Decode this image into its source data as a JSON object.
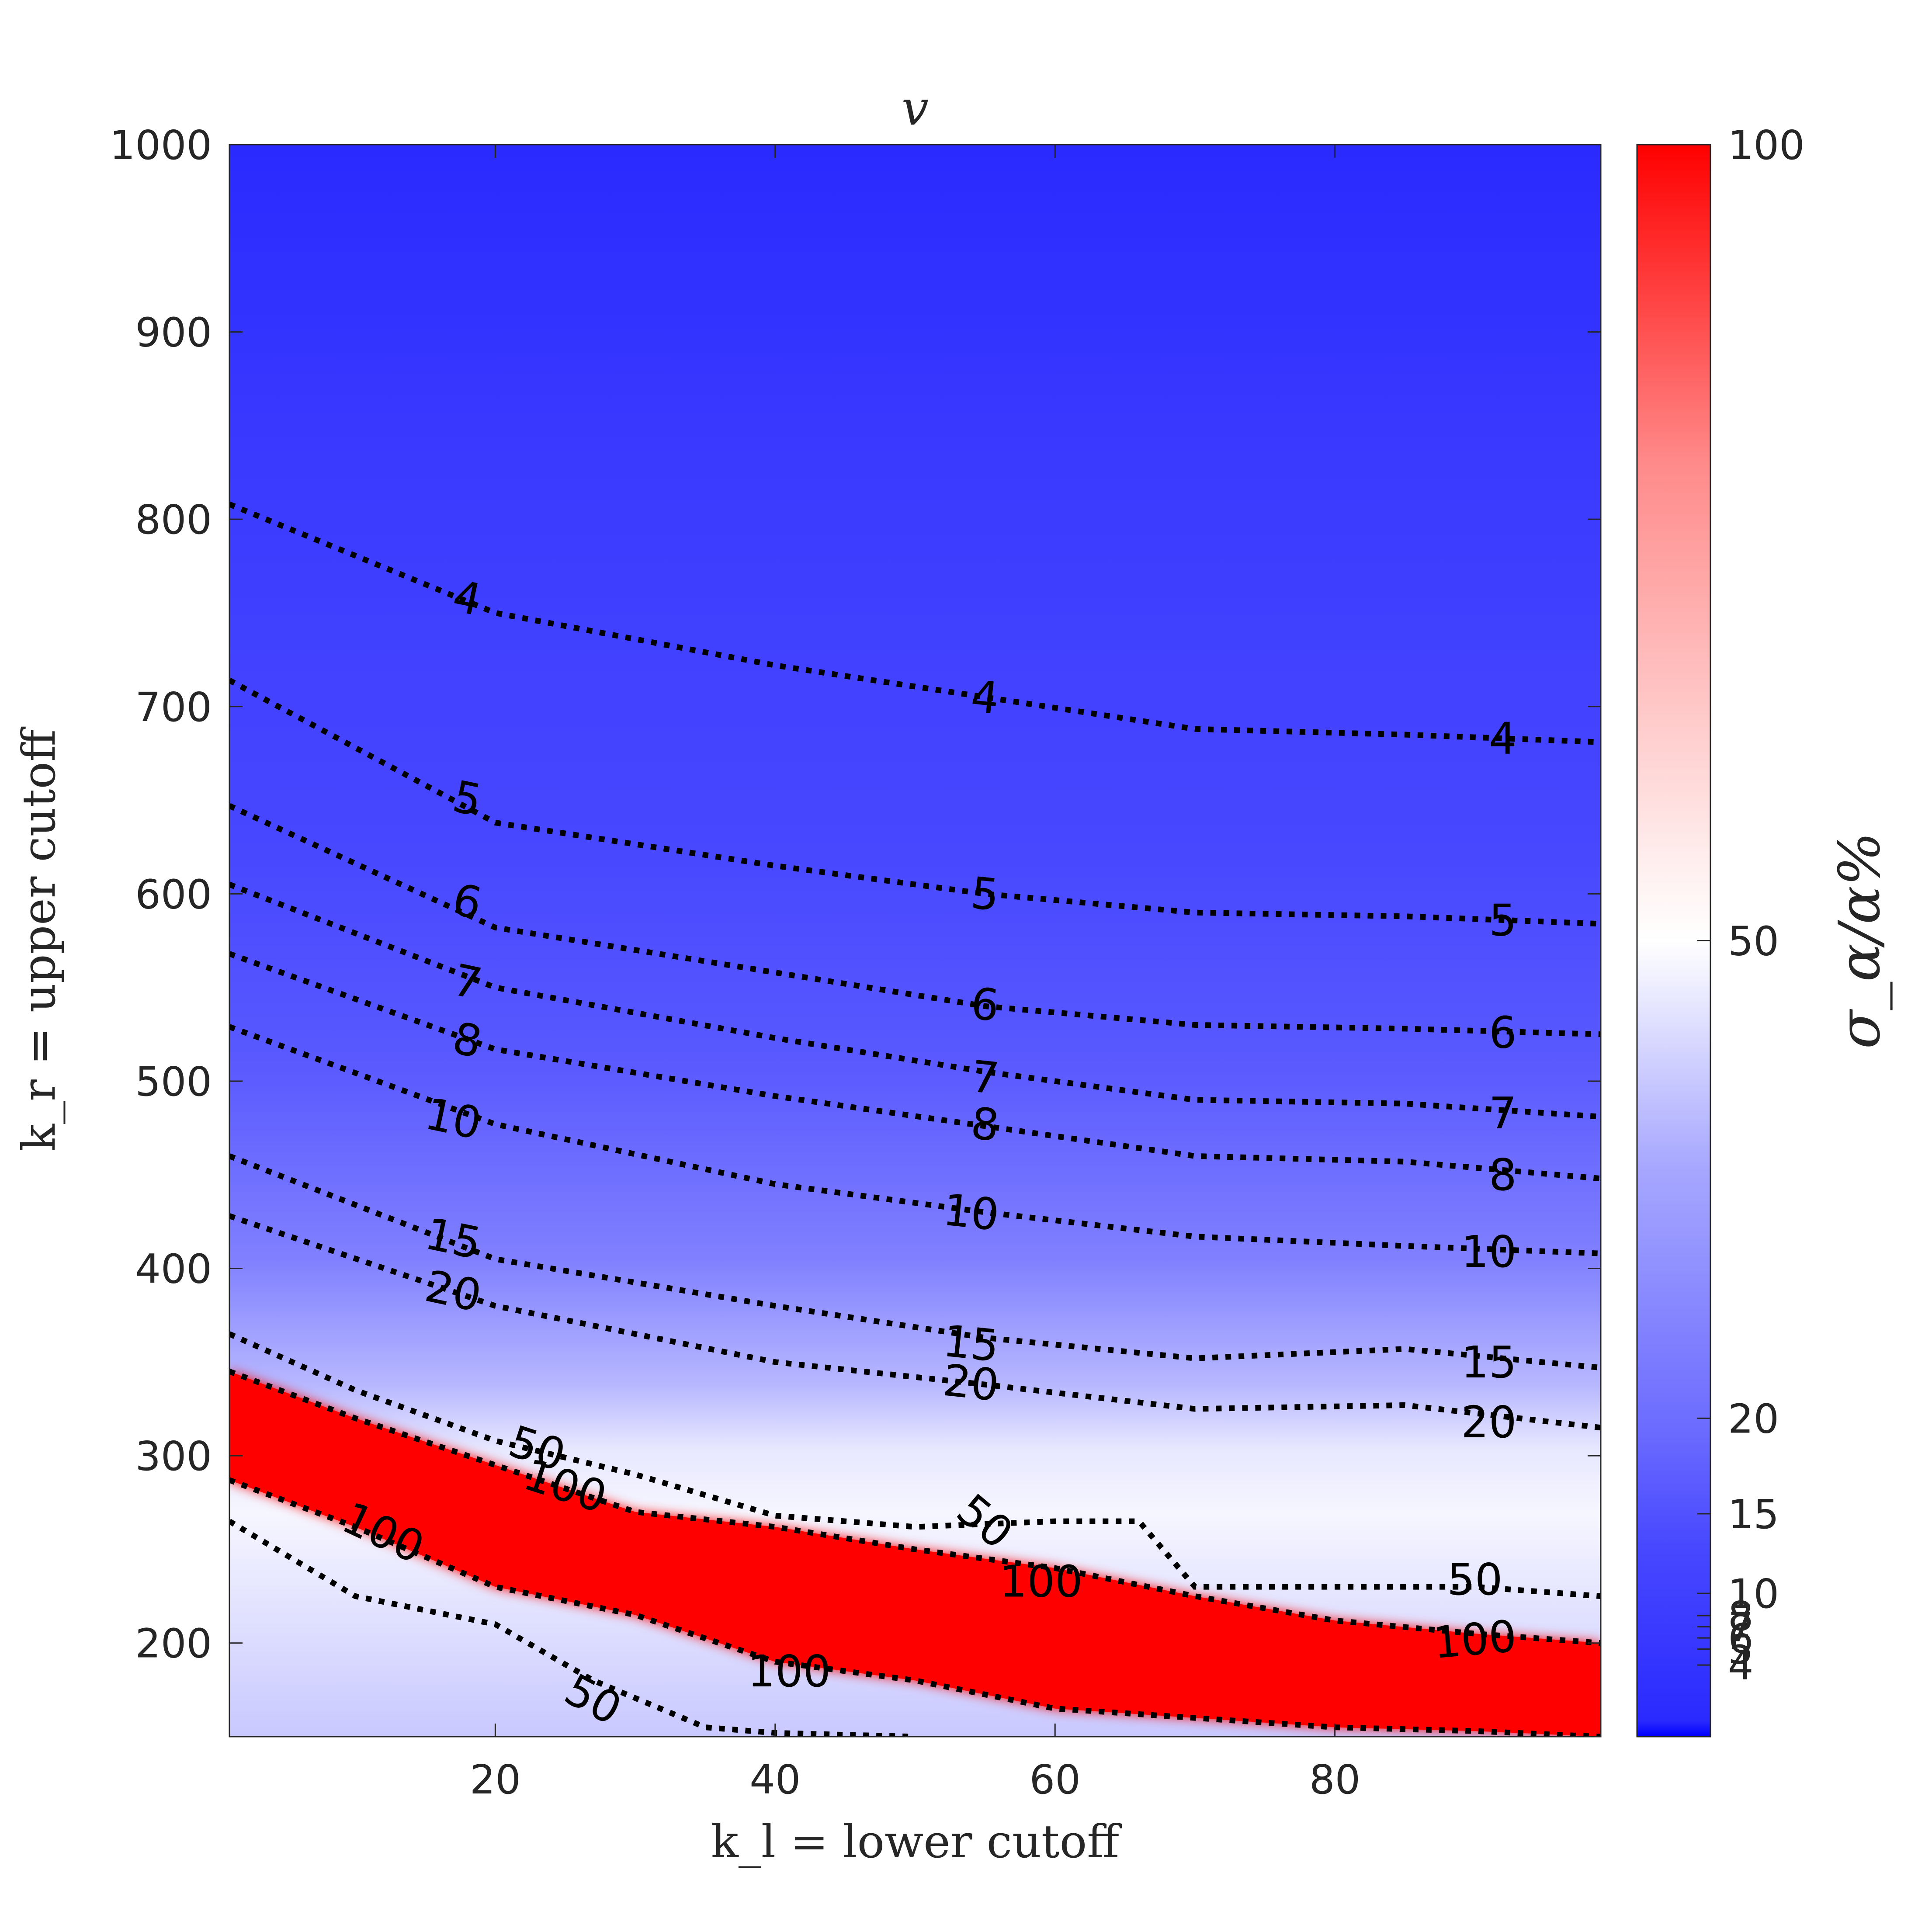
{
  "chart_data": {
    "type": "heatmap",
    "title": "v",
    "xlabel": "k_l = lower cutoff",
    "ylabel": "k_r = upper cutoff",
    "colorbar_label": "σ_α/α%",
    "xlim": [
      1,
      99
    ],
    "ylim": [
      150,
      1000
    ],
    "x_ticks": [
      20,
      40,
      60,
      80
    ],
    "y_ticks": [
      200,
      300,
      400,
      500,
      600,
      700,
      800,
      900,
      1000
    ],
    "colorbar_ticks": [
      4,
      5,
      6,
      7,
      8,
      10,
      15,
      20,
      50,
      100
    ],
    "colorbar_range": [
      3,
      100
    ],
    "colormap": {
      "low": "#0000ff",
      "mid": "#ffffff",
      "high": "#ff0000",
      "mid_value": 50
    },
    "grid": false,
    "contour_style": "black dotted",
    "contours": [
      {
        "level": 4,
        "x": [
          1,
          20,
          40,
          55,
          70,
          85,
          99
        ],
        "y": [
          808,
          750,
          722,
          705,
          688,
          685,
          681
        ]
      },
      {
        "level": 5,
        "x": [
          1,
          20,
          40,
          55,
          70,
          85,
          99
        ],
        "y": [
          714,
          638,
          615,
          600,
          590,
          588,
          584
        ]
      },
      {
        "level": 6,
        "x": [
          1,
          20,
          40,
          55,
          70,
          85,
          99
        ],
        "y": [
          647,
          582,
          558,
          540,
          530,
          528,
          525
        ]
      },
      {
        "level": 7,
        "x": [
          1,
          20,
          40,
          55,
          70,
          85,
          99
        ],
        "y": [
          605,
          550,
          523,
          505,
          490,
          488,
          481
        ]
      },
      {
        "level": 8,
        "x": [
          1,
          20,
          40,
          55,
          70,
          85,
          99
        ],
        "y": [
          568,
          517,
          492,
          476,
          460,
          457,
          448
        ]
      },
      {
        "level": 10,
        "x": [
          1,
          20,
          40,
          55,
          70,
          85,
          99
        ],
        "y": [
          529,
          477,
          445,
          430,
          417,
          412,
          408
        ]
      },
      {
        "level": 15,
        "x": [
          1,
          20,
          40,
          55,
          70,
          85,
          99
        ],
        "y": [
          460,
          405,
          380,
          363,
          352,
          357,
          347
        ]
      },
      {
        "level": 20,
        "x": [
          1,
          20,
          40,
          55,
          70,
          85,
          99
        ],
        "y": [
          428,
          380,
          350,
          338,
          325,
          327,
          315
        ]
      },
      {
        "level": 50,
        "x": [
          1,
          10,
          20,
          30,
          40,
          50,
          60,
          66,
          70,
          80,
          90,
          99
        ],
        "y": [
          365,
          335,
          308,
          290,
          268,
          262,
          265,
          265,
          230,
          230,
          230,
          225
        ]
      },
      {
        "level": 100,
        "x": [
          1,
          10,
          20,
          30,
          40,
          50,
          60,
          70,
          80,
          90,
          99
        ],
        "y": [
          345,
          320,
          295,
          270,
          262,
          250,
          240,
          225,
          212,
          205,
          200
        ]
      },
      {
        "level": 100,
        "x": [
          1,
          10,
          20,
          30,
          40,
          50,
          60,
          70,
          80,
          90,
          99
        ],
        "y": [
          287,
          262,
          230,
          215,
          190,
          180,
          165,
          160,
          155,
          153,
          150
        ]
      },
      {
        "level": 50,
        "x": [
          1,
          10,
          20,
          27,
          35,
          40,
          50
        ],
        "y": [
          265,
          225,
          210,
          180,
          155,
          152,
          150
        ]
      }
    ],
    "contour_labels": [
      {
        "text": "4",
        "x": 18,
        "y": 758,
        "rot": 12
      },
      {
        "text": "4",
        "x": 55,
        "y": 705,
        "rot": 6
      },
      {
        "text": "4",
        "x": 92,
        "y": 683,
        "rot": 0
      },
      {
        "text": "5",
        "x": 18,
        "y": 651,
        "rot": 12
      },
      {
        "text": "5",
        "x": 55,
        "y": 600,
        "rot": 6
      },
      {
        "text": "5",
        "x": 92,
        "y": 586,
        "rot": 0
      },
      {
        "text": "6",
        "x": 18,
        "y": 596,
        "rot": 12
      },
      {
        "text": "6",
        "x": 55,
        "y": 541,
        "rot": 6
      },
      {
        "text": "6",
        "x": 92,
        "y": 526,
        "rot": 0
      },
      {
        "text": "7",
        "x": 18,
        "y": 553,
        "rot": 12
      },
      {
        "text": "7",
        "x": 55,
        "y": 502,
        "rot": 6
      },
      {
        "text": "7",
        "x": 92,
        "y": 483,
        "rot": 0
      },
      {
        "text": "8",
        "x": 18,
        "y": 522,
        "rot": 12
      },
      {
        "text": "8",
        "x": 55,
        "y": 477,
        "rot": 6
      },
      {
        "text": "8",
        "x": 92,
        "y": 450,
        "rot": 0
      },
      {
        "text": "10",
        "x": 17,
        "y": 480,
        "rot": 12
      },
      {
        "text": "10",
        "x": 54,
        "y": 430,
        "rot": 6
      },
      {
        "text": "10",
        "x": 91,
        "y": 409,
        "rot": 0
      },
      {
        "text": "15",
        "x": 17,
        "y": 416,
        "rot": 12
      },
      {
        "text": "15",
        "x": 54,
        "y": 360,
        "rot": 6
      },
      {
        "text": "15",
        "x": 91,
        "y": 350,
        "rot": 0
      },
      {
        "text": "20",
        "x": 17,
        "y": 388,
        "rot": 12
      },
      {
        "text": "20",
        "x": 54,
        "y": 339,
        "rot": 6
      },
      {
        "text": "20",
        "x": 91,
        "y": 318,
        "rot": 0
      },
      {
        "text": "50",
        "x": 23,
        "y": 304,
        "rot": 18
      },
      {
        "text": "100",
        "x": 25,
        "y": 284,
        "rot": 18
      },
      {
        "text": "100",
        "x": 12,
        "y": 259,
        "rot": 25
      },
      {
        "text": "50",
        "x": 55,
        "y": 265,
        "rot": 40
      },
      {
        "text": "100",
        "x": 59,
        "y": 233,
        "rot": 0
      },
      {
        "text": "50",
        "x": 90,
        "y": 234,
        "rot": 0
      },
      {
        "text": "100",
        "x": 90,
        "y": 202,
        "rot": -5
      },
      {
        "text": "100",
        "x": 41,
        "y": 185,
        "rot": 0
      },
      {
        "text": "50",
        "x": 27,
        "y": 170,
        "rot": 28
      }
    ]
  }
}
